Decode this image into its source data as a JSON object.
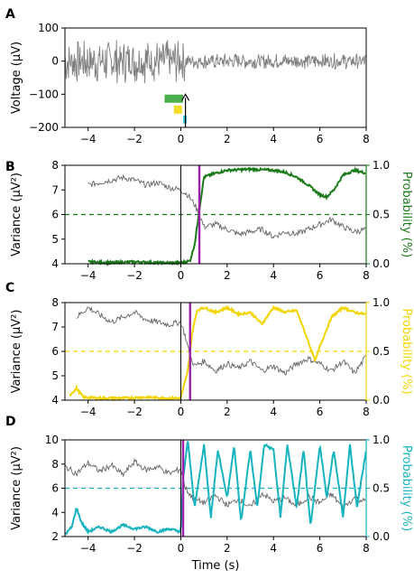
{
  "figure": {
    "xlabel": "Time (s)"
  },
  "chart_data": [
    {
      "panel": "A",
      "type": "line",
      "ylabel": "Voltage (μV)",
      "xlim": [
        -5,
        8
      ],
      "ylim": [
        -200,
        100
      ],
      "xticks": [
        -4,
        -2,
        0,
        2,
        4,
        6,
        8
      ],
      "yticks": [
        100,
        0,
        -100,
        -200
      ],
      "series": [
        {
          "role": "trace",
          "color": "#7f7f7f",
          "description_values": {
            "amplitude_before_uv": 70,
            "amplitude_after_uv": 25,
            "change_time_s": 0.2
          }
        }
      ],
      "annotations": {
        "arrow": {
          "x": 0.2,
          "from_y": -200,
          "to_y": -100,
          "color": "#000000"
        },
        "bars": [
          {
            "color": "#2ca02c",
            "x_start": -0.7,
            "x_end": 0.1,
            "y_center": -112
          },
          {
            "color": "#f2d500",
            "x_start": -0.3,
            "x_end": 0.05,
            "y_center": -145
          },
          {
            "color": "#17becf",
            "x_start": 0.1,
            "x_end": 0.25,
            "y_center": -175
          }
        ]
      }
    },
    {
      "panel": "B",
      "type": "line",
      "ylabel": "Variance (μV²)",
      "y2label": "Probability (%)",
      "accent": "#1a7a1a",
      "xlim": [
        -5,
        8
      ],
      "ylim": [
        4,
        8
      ],
      "y2lim": [
        0,
        1
      ],
      "xticks": [
        -4,
        -2,
        0,
        2,
        4,
        6,
        8
      ],
      "yticks": [
        4,
        5,
        6,
        7,
        8
      ],
      "y2ticks": [
        "0.0",
        "0.5",
        "1.0"
      ],
      "threshold": 0.5,
      "onset_line_x": 0,
      "detection_line_x": 0.8,
      "detection_color": "#9b1fa8",
      "variance": {
        "x": [
          -4.0,
          -3.5,
          -3.0,
          -2.5,
          -2.0,
          -1.5,
          -1.0,
          -0.5,
          0.0,
          0.3,
          0.6,
          0.8,
          1.0,
          1.5,
          2.0,
          2.5,
          3.0,
          3.5,
          4.0,
          4.5,
          5.0,
          5.5,
          6.0,
          6.5,
          7.0,
          7.5,
          8.0
        ],
        "y": [
          7.2,
          7.3,
          7.4,
          7.5,
          7.4,
          7.2,
          7.3,
          7.1,
          7.0,
          6.8,
          6.4,
          6.0,
          5.5,
          5.6,
          5.4,
          5.2,
          5.3,
          5.4,
          5.1,
          5.3,
          5.2,
          5.4,
          5.6,
          5.8,
          5.5,
          5.3,
          5.4
        ]
      },
      "probability": {
        "x": [
          -4.0,
          -3.0,
          -2.0,
          -1.0,
          0.0,
          0.4,
          0.6,
          0.8,
          1.0,
          1.5,
          2.0,
          3.0,
          4.0,
          4.5,
          5.0,
          5.5,
          6.0,
          6.3,
          6.6,
          7.0,
          7.5,
          8.0
        ],
        "y": [
          0.02,
          0.01,
          0.02,
          0.01,
          0.01,
          0.03,
          0.2,
          0.55,
          0.88,
          0.92,
          0.95,
          0.96,
          0.95,
          0.93,
          0.88,
          0.8,
          0.7,
          0.68,
          0.75,
          0.9,
          0.95,
          0.92
        ]
      }
    },
    {
      "panel": "C",
      "type": "line",
      "ylabel": "Variance (μV²)",
      "y2label": "Probability (%)",
      "accent": "#f2d500",
      "xlim": [
        -5,
        8
      ],
      "ylim": [
        4,
        8
      ],
      "y2lim": [
        0,
        1
      ],
      "xticks": [
        -4,
        -2,
        0,
        2,
        4,
        6,
        8
      ],
      "yticks": [
        4,
        5,
        6,
        7,
        8
      ],
      "y2ticks": [
        "0.0",
        "0.5",
        "1.0"
      ],
      "threshold": 0.5,
      "onset_line_x": 0,
      "detection_line_x": 0.4,
      "detection_color": "#9b1fa8",
      "variance": {
        "x": [
          -4.5,
          -4.0,
          -3.5,
          -3.0,
          -2.5,
          -2.0,
          -1.5,
          -1.0,
          -0.5,
          0.0,
          0.2,
          0.4,
          0.6,
          1.0,
          1.5,
          2.0,
          2.5,
          3.0,
          3.5,
          4.0,
          4.5,
          5.0,
          5.5,
          6.0,
          6.5,
          7.0,
          7.5,
          8.0
        ],
        "y": [
          7.4,
          7.8,
          7.5,
          7.2,
          7.4,
          7.6,
          7.3,
          7.2,
          7.1,
          7.2,
          6.6,
          5.8,
          5.4,
          5.6,
          5.2,
          5.5,
          5.3,
          5.6,
          5.2,
          5.4,
          5.1,
          5.5,
          5.7,
          5.5,
          5.2,
          5.6,
          5.1,
          5.8
        ]
      },
      "probability": {
        "x": [
          -4.8,
          -4.5,
          -4.2,
          -3.5,
          -2.5,
          -1.5,
          -0.5,
          0.0,
          0.3,
          0.5,
          0.7,
          1.0,
          1.5,
          2.0,
          2.5,
          3.0,
          3.5,
          4.0,
          4.5,
          5.0,
          5.5,
          5.8,
          6.0,
          6.5,
          7.0,
          7.5,
          8.0
        ],
        "y": [
          0.05,
          0.12,
          0.03,
          0.02,
          0.02,
          0.03,
          0.02,
          0.02,
          0.3,
          0.7,
          0.92,
          0.95,
          0.9,
          0.95,
          0.88,
          0.9,
          0.78,
          0.95,
          0.9,
          0.92,
          0.6,
          0.4,
          0.55,
          0.85,
          0.95,
          0.9,
          0.88
        ]
      }
    },
    {
      "panel": "D",
      "type": "line",
      "ylabel": "Variance (μV²)",
      "y2label": "Probability (%)",
      "accent": "#17b3bf",
      "xlim": [
        -5,
        8
      ],
      "ylim": [
        2,
        10
      ],
      "y2lim": [
        0,
        1
      ],
      "xticks": [
        -4,
        -2,
        0,
        2,
        4,
        6,
        8
      ],
      "yticks": [
        2,
        4,
        6,
        8,
        10
      ],
      "y2ticks": [
        "0.0",
        "0.5",
        "1.0"
      ],
      "threshold": 0.5,
      "onset_line_x": 0,
      "detection_line_x": 0.1,
      "detection_color": "#9b1fa8",
      "variance": {
        "x": [
          -5.0,
          -4.5,
          -4.0,
          -3.5,
          -3.0,
          -2.5,
          -2.0,
          -1.5,
          -1.0,
          -0.5,
          0.0,
          0.2,
          0.5,
          1.0,
          1.5,
          2.0,
          2.5,
          3.0,
          3.5,
          4.0,
          4.5,
          5.0,
          5.5,
          6.0,
          6.5,
          7.0,
          7.5,
          8.0
        ],
        "y": [
          7.8,
          7.2,
          8.1,
          7.4,
          7.9,
          7.1,
          8.2,
          7.5,
          7.8,
          7.2,
          7.6,
          6.0,
          5.2,
          4.8,
          5.4,
          4.6,
          5.1,
          4.4,
          5.6,
          4.9,
          5.2,
          4.5,
          5.3,
          4.8,
          5.5,
          4.4,
          5.2,
          4.9
        ]
      },
      "probability": {
        "x": [
          -5.0,
          -4.7,
          -4.5,
          -4.3,
          -4.0,
          -3.5,
          -3.0,
          -2.5,
          -2.0,
          -1.5,
          -1.0,
          -0.5,
          0.0,
          0.1,
          0.3,
          0.6,
          1.0,
          1.3,
          1.6,
          2.0,
          2.3,
          2.6,
          3.0,
          3.3,
          3.6,
          4.0,
          4.3,
          4.6,
          5.0,
          5.3,
          5.6,
          6.0,
          6.3,
          6.6,
          7.0,
          7.3,
          7.6,
          8.0
        ],
        "y": [
          0.02,
          0.1,
          0.3,
          0.15,
          0.05,
          0.1,
          0.05,
          0.12,
          0.08,
          0.1,
          0.05,
          0.08,
          0.05,
          0.6,
          1.0,
          0.3,
          0.95,
          0.2,
          0.9,
          0.4,
          0.95,
          0.15,
          0.9,
          0.3,
          0.95,
          0.9,
          0.2,
          0.95,
          0.3,
          0.9,
          0.1,
          0.95,
          0.4,
          0.9,
          0.2,
          0.95,
          0.3,
          0.9
        ]
      }
    }
  ]
}
